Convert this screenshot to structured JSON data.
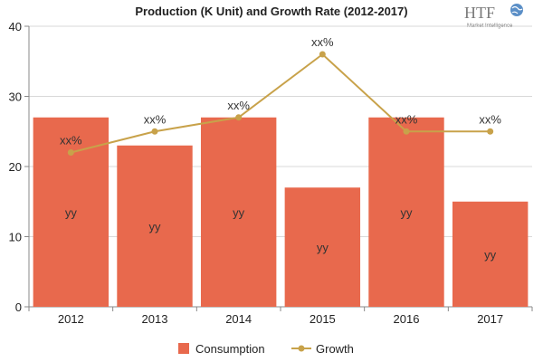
{
  "chart_data": {
    "type": "bar",
    "title": "Production (K Unit) and Growth Rate (2012-2017)",
    "categories": [
      "2012",
      "2013",
      "2014",
      "2015",
      "2016",
      "2017"
    ],
    "ylim": [
      0,
      40
    ],
    "yticks": [
      "0",
      "10",
      "20",
      "30",
      "40"
    ],
    "xlabel": "",
    "ylabel": "",
    "series": [
      {
        "name": "Consumption",
        "type": "bar",
        "color": "#e8694d",
        "values": [
          27,
          23,
          27,
          17,
          27,
          15
        ],
        "labels": [
          "yy",
          "yy",
          "yy",
          "yy",
          "yy",
          "yy"
        ]
      },
      {
        "name": "Growth",
        "type": "line",
        "color": "#c8a24a",
        "values": [
          22,
          25,
          27,
          36,
          25,
          25
        ],
        "labels": [
          "xx%",
          "xx%",
          "xx%",
          "xx%",
          "xx%",
          "xx%"
        ]
      }
    ],
    "legend_position": "bottom",
    "grid": true
  },
  "logo": {
    "brand": "HTF",
    "tagline": "Market Intelligence"
  }
}
